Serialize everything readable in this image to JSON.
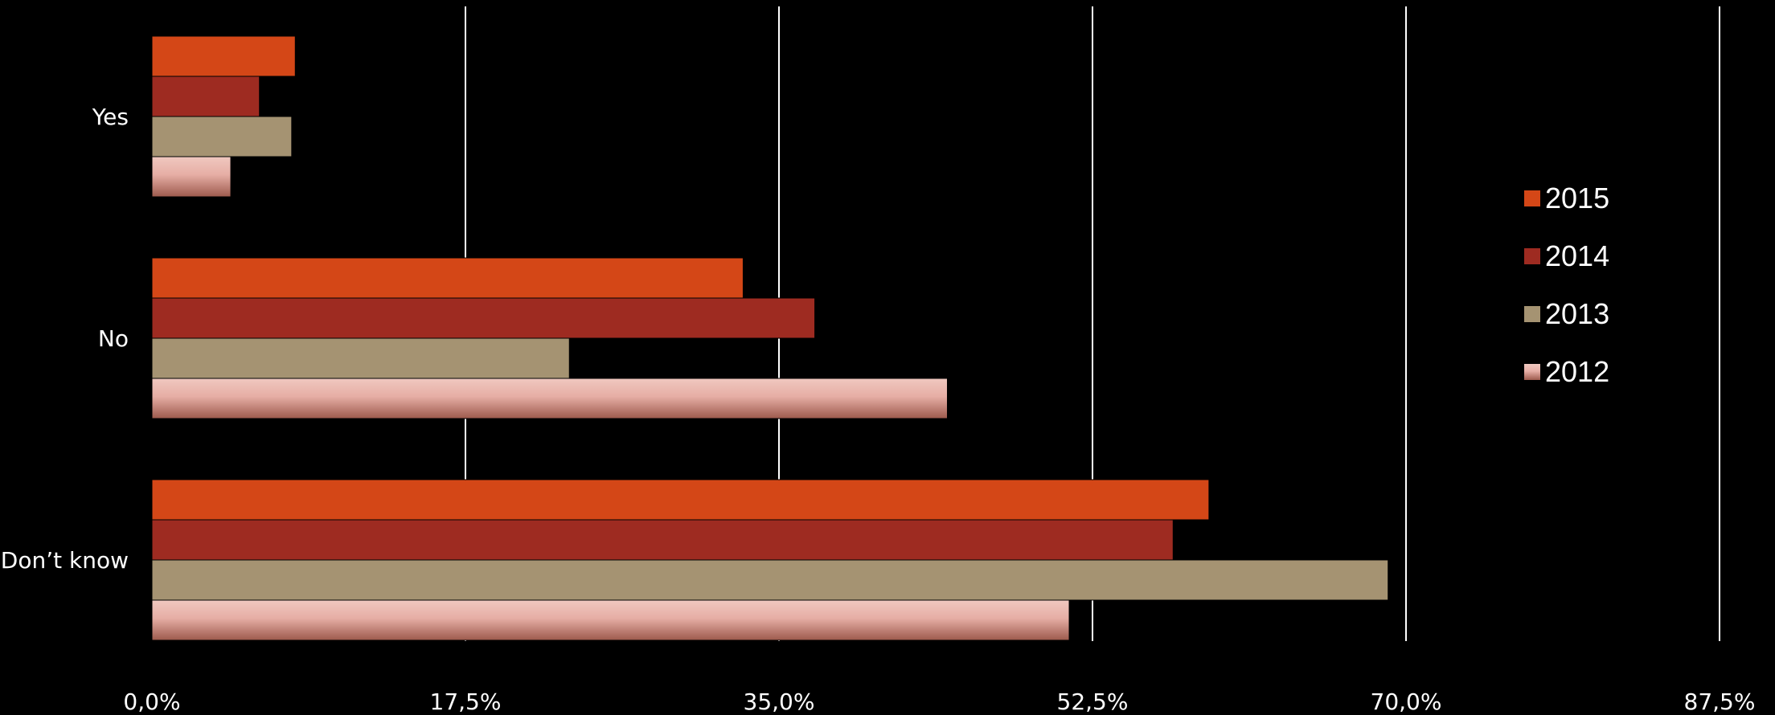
{
  "chart_data": {
    "type": "bar",
    "orientation": "horizontal",
    "categories": [
      "Yes",
      "No",
      "Don’t know"
    ],
    "series": [
      {
        "name": "2015",
        "color": "#d44717",
        "values": [
          8.0,
          33.0,
          59.0
        ]
      },
      {
        "name": "2014",
        "color": "#9e2b21",
        "values": [
          6.0,
          37.0,
          57.0
        ]
      },
      {
        "name": "2013",
        "color": "#a59372",
        "values": [
          7.8,
          23.3,
          69.0
        ]
      },
      {
        "name": "2012",
        "color": "#e8b3ab",
        "values": [
          4.4,
          44.4,
          51.2
        ]
      }
    ],
    "xlim": [
      0,
      87.5
    ],
    "xticks": [
      "0,0%",
      "17,5%",
      "35,0%",
      "52,5%",
      "70,0%",
      "87,5%"
    ],
    "grid": true,
    "legend_position": "right"
  }
}
